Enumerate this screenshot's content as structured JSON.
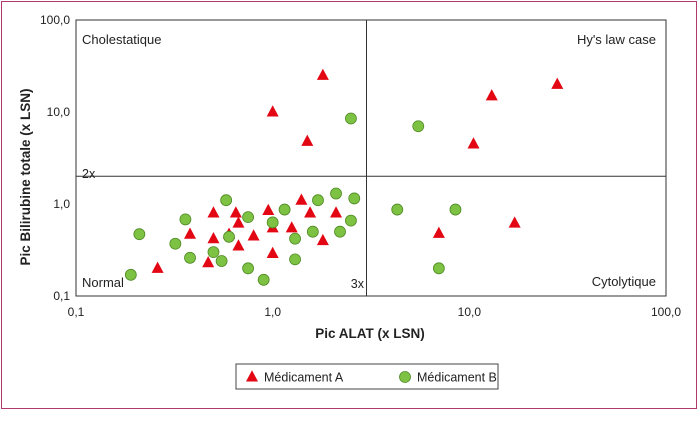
{
  "chart_data": {
    "type": "scatter",
    "title": "",
    "xlabel": "Pic ALAT (x LSN)",
    "ylabel": "Pic Bilirubine totale (x LSN)",
    "xscale": "log",
    "yscale": "log",
    "xlim": [
      0.1,
      100
    ],
    "ylim": [
      0.1,
      100
    ],
    "x_ticks": [
      "0,1",
      "1,0",
      "10,0",
      "100,0"
    ],
    "y_ticks": [
      "0,1",
      "1,0",
      "10,0",
      "100,0"
    ],
    "thresholds": {
      "x": 3,
      "y": 2
    },
    "grid": false,
    "legend_position": "bottom-center",
    "quadrant_labels": {
      "top_left": "Cholestatique",
      "top_right": "Hy's law case",
      "bottom_left": "Normal",
      "bottom_right": "Cytolytique"
    },
    "threshold_labels": {
      "y": "2x",
      "x": "3x"
    },
    "series": [
      {
        "name": "Médicament A",
        "marker": "triangle",
        "color": "#e30613",
        "points": [
          [
            1.0,
            10.0
          ],
          [
            1.8,
            25.0
          ],
          [
            1.5,
            4.8
          ],
          [
            13.0,
            15.0
          ],
          [
            28.0,
            20.0
          ],
          [
            10.5,
            4.5
          ],
          [
            7.0,
            0.48
          ],
          [
            17.0,
            0.62
          ],
          [
            0.26,
            0.2
          ],
          [
            0.38,
            0.47
          ],
          [
            0.47,
            0.23
          ],
          [
            0.5,
            0.8
          ],
          [
            0.5,
            0.42
          ],
          [
            0.6,
            0.47
          ],
          [
            0.65,
            0.8
          ],
          [
            0.67,
            0.62
          ],
          [
            0.67,
            0.35
          ],
          [
            0.8,
            0.45
          ],
          [
            0.95,
            0.85
          ],
          [
            1.0,
            0.55
          ],
          [
            1.0,
            0.29
          ],
          [
            1.25,
            0.55
          ],
          [
            1.4,
            1.1
          ],
          [
            1.55,
            0.8
          ],
          [
            1.8,
            0.4
          ],
          [
            2.1,
            0.8
          ]
        ]
      },
      {
        "name": "Médicament B",
        "marker": "circle",
        "color": "#7dc242",
        "points": [
          [
            2.5,
            8.5
          ],
          [
            5.5,
            7.0
          ],
          [
            4.3,
            0.87
          ],
          [
            8.5,
            0.87
          ],
          [
            7.0,
            0.2
          ],
          [
            0.19,
            0.17
          ],
          [
            0.21,
            0.47
          ],
          [
            0.32,
            0.37
          ],
          [
            0.36,
            0.68
          ],
          [
            0.38,
            0.26
          ],
          [
            0.5,
            0.3
          ],
          [
            0.55,
            0.24
          ],
          [
            0.58,
            1.1
          ],
          [
            0.6,
            0.44
          ],
          [
            0.75,
            0.72
          ],
          [
            0.75,
            0.2
          ],
          [
            0.9,
            0.15
          ],
          [
            1.0,
            0.63
          ],
          [
            1.15,
            0.87
          ],
          [
            1.3,
            0.42
          ],
          [
            1.3,
            0.25
          ],
          [
            1.6,
            0.5
          ],
          [
            1.7,
            1.1
          ],
          [
            2.1,
            1.3
          ],
          [
            2.2,
            0.5
          ],
          [
            2.5,
            0.66
          ],
          [
            2.6,
            1.15
          ]
        ]
      }
    ]
  }
}
